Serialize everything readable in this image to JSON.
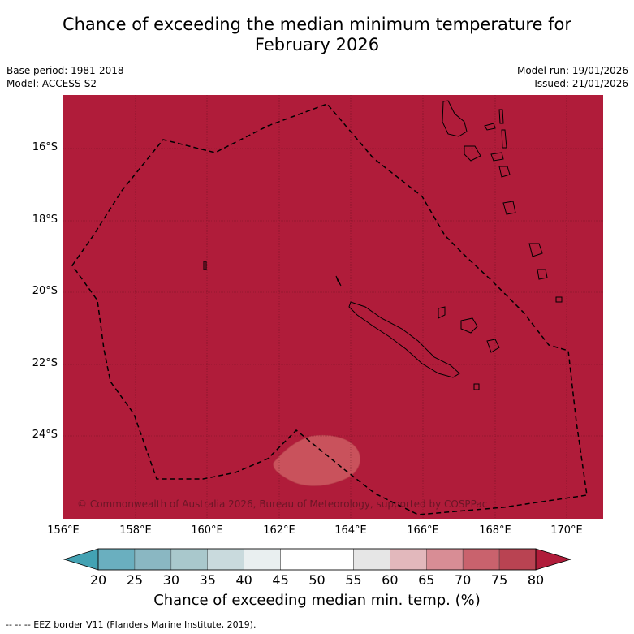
{
  "title_line1": "Chance of exceeding the median minimum temperature for",
  "title_line2": "February 2026",
  "meta_left": {
    "base_period": "Base period: 1981-2018",
    "model": "Model: ACCESS-S2"
  },
  "meta_right": {
    "model_run": "Model run: 19/01/2026",
    "issued": "Issued: 21/01/2026"
  },
  "map": {
    "copyright": "© Commonwealth of Australia 2026, Bureau of Meteorology, supported by COSPPac",
    "lat_labels": [
      "16°S",
      "18°S",
      "20°S",
      "22°S",
      "24°S"
    ],
    "lon_labels": [
      "156°E",
      "158°E",
      "160°E",
      "162°E",
      "164°E",
      "166°E",
      "168°E",
      "170°E"
    ],
    "background_color": "#b01c3a",
    "patch_color": "#c9525c",
    "patch_value_band": "70-75"
  },
  "colorbar": {
    "ticks": [
      "20",
      "25",
      "30",
      "35",
      "40",
      "45",
      "50",
      "55",
      "60",
      "65",
      "70",
      "75",
      "80"
    ],
    "colors": [
      "#43a2b3",
      "#6aafbf",
      "#8ab7c2",
      "#a9c8cc",
      "#c9dadd",
      "#e9eff0",
      "#ffffff",
      "#ffffff",
      "#e6e6e6",
      "#e2b8bc",
      "#d88d95",
      "#c9626d",
      "#b94352",
      "#b01c3a"
    ],
    "title": "Chance of exceeding median min. temp. (%)"
  },
  "footnote": "--  --  -- EEZ border V11 (Flanders Marine Institute, 2019)."
}
